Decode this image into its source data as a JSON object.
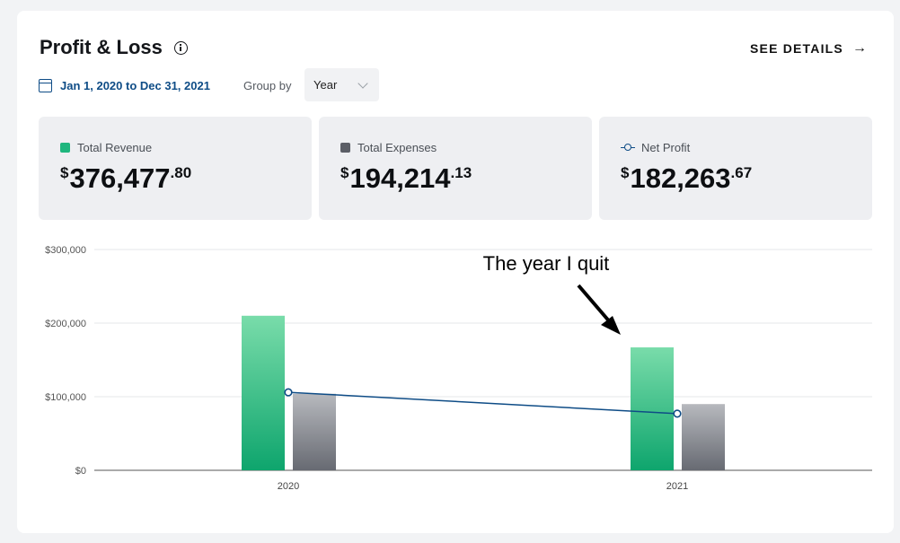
{
  "header": {
    "title": "Profit & Loss",
    "see_details_label": "SEE DETAILS",
    "arrow_glyph": "→"
  },
  "filters": {
    "date_range": "Jan 1, 2020 to Dec 31, 2021",
    "group_by_label": "Group by",
    "group_by_value": "Year"
  },
  "kpis": [
    {
      "label": "Total Revenue",
      "currency": "$",
      "main": "376,477",
      "cents": ".80",
      "swatch": "square",
      "color": "#1fb67e"
    },
    {
      "label": "Total Expenses",
      "currency": "$",
      "main": "194,214",
      "cents": ".13",
      "swatch": "square",
      "color": "#5b5e66"
    },
    {
      "label": "Net Profit",
      "currency": "$",
      "main": "182,263",
      "cents": ".67",
      "swatch": "line-marker",
      "color": "#0e4c86"
    }
  ],
  "chart_data": {
    "type": "bar",
    "categories": [
      "2020",
      "2021"
    ],
    "series": [
      {
        "values": [
          210000,
          167000
        ],
        "color": "#1fb67e",
        "kind": "bar"
      },
      {
        "values": [
          104000,
          90000
        ],
        "color": "#6e7179",
        "kind": "bar"
      },
      {
        "values": [
          106000,
          77000
        ],
        "color": "#0e4c86",
        "kind": "line"
      }
    ],
    "ylim": [
      0,
      300000
    ],
    "yticks": [
      0,
      100000,
      200000,
      300000
    ],
    "ytick_labels": [
      "$0",
      "$100,000",
      "$200,000",
      "$300,000"
    ],
    "grid": true,
    "annotation": {
      "text": "The year I quit",
      "category": "2021"
    }
  }
}
